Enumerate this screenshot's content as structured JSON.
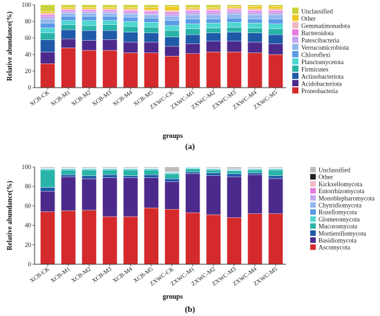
{
  "chart_data": [
    {
      "type": "bar",
      "stacked": true,
      "panel_label": "(a)",
      "xlabel": "groups",
      "ylabel": "Relative abundance(%)",
      "ylim": [
        0,
        100
      ],
      "yticks": [
        0,
        20,
        40,
        60,
        80,
        100
      ],
      "categories": [
        "XCB-CK",
        "XCB-M1",
        "XCB-M2",
        "XCB-M3",
        "XCB-M4",
        "XCB-M5",
        "ZXWC-CK",
        "ZXWC-M1",
        "ZXWC-M2",
        "ZXWC-M3",
        "ZXWC-M4",
        "ZXWC-M5"
      ],
      "legend_position": "right",
      "series": [
        {
          "name": "Proteobacteria",
          "color": "#d42a2c",
          "values": [
            29,
            48,
            45,
            45,
            42,
            42,
            38,
            41,
            43,
            43,
            42,
            40
          ]
        },
        {
          "name": "Acidobacteriota",
          "color": "#4b2a8c",
          "values": [
            14,
            11,
            12,
            13,
            13,
            13,
            12,
            12,
            13,
            13,
            13,
            13
          ]
        },
        {
          "name": "Actinobacteriota",
          "color": "#1f5aa8",
          "values": [
            15,
            11,
            12,
            11,
            12,
            11,
            11,
            11,
            10,
            11,
            11,
            11
          ]
        },
        {
          "name": "Firmicutes",
          "color": "#2ab3a8",
          "values": [
            8,
            6,
            6,
            7,
            7,
            7,
            8,
            7,
            6,
            6,
            6,
            7
          ]
        },
        {
          "name": "Planctomycetota",
          "color": "#4fd6d2",
          "values": [
            6,
            5,
            6,
            5,
            6,
            6,
            6,
            6,
            6,
            6,
            6,
            6
          ]
        },
        {
          "name": "Chloroflexi",
          "color": "#5a9ae6",
          "values": [
            6,
            5,
            5,
            5,
            5,
            5,
            6,
            6,
            5,
            5,
            5,
            6
          ]
        },
        {
          "name": "Verrucomicrobiota",
          "color": "#93b8ee",
          "values": [
            5,
            4,
            4,
            4,
            4,
            4,
            5,
            5,
            5,
            5,
            5,
            5
          ]
        },
        {
          "name": "Patescibacteria",
          "color": "#c4a8ee",
          "values": [
            3,
            2,
            2,
            2,
            2,
            2,
            3,
            3,
            3,
            3,
            3,
            3
          ]
        },
        {
          "name": "Bacteroidota",
          "color": "#e57ce0",
          "values": [
            2,
            2,
            2,
            2,
            2,
            2,
            2,
            2,
            2,
            2,
            2,
            2
          ]
        },
        {
          "name": "Gemmatimonadota",
          "color": "#f2b8c0",
          "values": [
            2,
            1,
            1,
            1,
            2,
            2,
            2,
            2,
            2,
            2,
            2,
            2
          ]
        },
        {
          "name": "Other",
          "color": "#f0c820",
          "values": [
            2,
            2,
            2,
            2,
            2,
            3,
            5,
            2,
            2,
            2,
            3,
            3
          ]
        },
        {
          "name": "Unclassified",
          "color": "#ccd23a",
          "values": [
            8,
            3,
            3,
            3,
            3,
            3,
            2,
            3,
            3,
            2,
            2,
            2
          ]
        }
      ]
    },
    {
      "type": "bar",
      "stacked": true,
      "panel_label": "(b)",
      "xlabel": "groups",
      "ylabel": "Relative abundance(%)",
      "ylim": [
        0,
        100
      ],
      "yticks": [
        0,
        20,
        40,
        60,
        80,
        100
      ],
      "categories": [
        "XCB-CK",
        "XCB-M1",
        "XCB-M2",
        "XCB-M3",
        "XCB-M4",
        "XCB-M5",
        "ZXWC-CK",
        "ZXWC-M1",
        "ZXWC-M2",
        "ZXWC-M3",
        "ZXWC-M4",
        "ZXWC-M5"
      ],
      "legend_position": "right",
      "series": [
        {
          "name": "Ascomycota",
          "color": "#d42a2c",
          "values": [
            54,
            55,
            55,
            49,
            49,
            58,
            56,
            53,
            51,
            48,
            52,
            52
          ]
        },
        {
          "name": "Basidiomycota",
          "color": "#4b2a8c",
          "values": [
            21,
            35,
            32,
            40,
            40,
            31,
            28,
            40,
            40,
            42,
            40,
            36
          ]
        },
        {
          "name": "Mortierellomycota",
          "color": "#1f5aa8",
          "values": [
            4,
            2,
            3,
            3,
            2,
            3,
            3,
            2,
            3,
            3,
            2,
            3
          ]
        },
        {
          "name": "Mucoromycota",
          "color": "#2ab3a8",
          "values": [
            18,
            5,
            6,
            5,
            6,
            5,
            5,
            3,
            3,
            3,
            3,
            6
          ]
        },
        {
          "name": "Glomeromycota",
          "color": "#4fd6d2",
          "values": [
            1,
            1,
            1,
            1,
            1,
            1,
            1,
            1,
            1,
            1,
            1,
            1
          ]
        },
        {
          "name": "Rozellomycota",
          "color": "#5a9ae6",
          "values": [
            0.5,
            0.5,
            0.5,
            0.5,
            0.5,
            0.5,
            0.5,
            0.5,
            0.5,
            0.5,
            0.5,
            0.5
          ]
        },
        {
          "name": "Chytridiomycota",
          "color": "#93b8ee",
          "values": [
            0.5,
            0.5,
            0.5,
            0.5,
            0.5,
            0.5,
            0.5,
            0.5,
            0.5,
            0.5,
            0.5,
            0.5
          ]
        },
        {
          "name": "Monoblepharomycota",
          "color": "#c4a8ee",
          "values": [
            0,
            0,
            0,
            0,
            0,
            0,
            0,
            0,
            0,
            0,
            0,
            0
          ]
        },
        {
          "name": "Entorrhizomycota",
          "color": "#e57ce0",
          "values": [
            0,
            0,
            0,
            0,
            0,
            0,
            0,
            0,
            0,
            0,
            0,
            0
          ]
        },
        {
          "name": "Kickxellomycota",
          "color": "#f2b8c0",
          "values": [
            0,
            0,
            0,
            0,
            0,
            0,
            0,
            0,
            0,
            0,
            0,
            0
          ]
        },
        {
          "name": "Other",
          "color": "#222222",
          "values": [
            0,
            0,
            0,
            0,
            0,
            0,
            0,
            0,
            0,
            0,
            0,
            0
          ]
        },
        {
          "name": "Unclassified",
          "color": "#bcbcbc",
          "values": [
            1,
            1,
            1,
            1,
            1,
            1,
            5,
            0,
            1,
            2,
            1,
            1
          ]
        }
      ]
    }
  ]
}
